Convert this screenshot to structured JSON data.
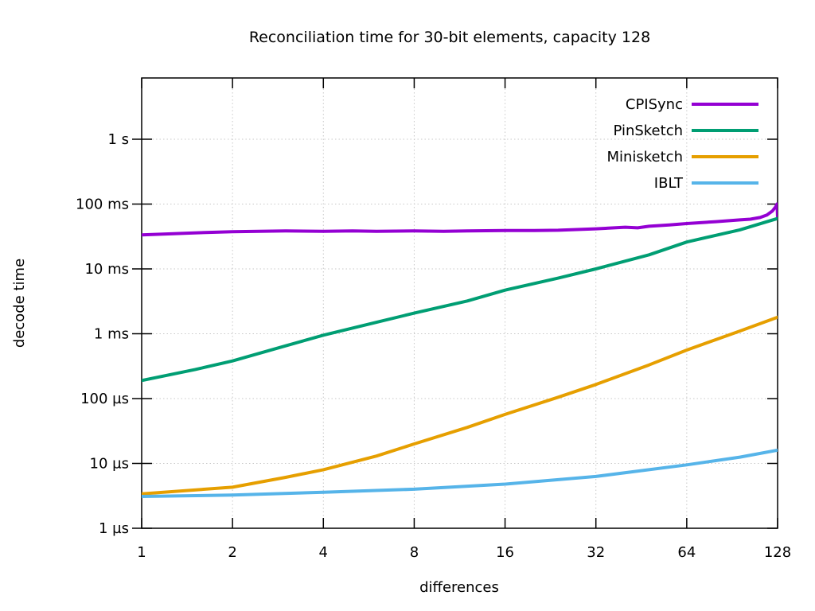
{
  "title": "Reconciliation time for 30-bit elements, capacity 128",
  "background_color": "#ffffff",
  "chart_data": {
    "type": "line",
    "title": "Reconciliation time for 30-bit elements, capacity 128",
    "xlabel": "differences",
    "ylabel": "decode time",
    "x_axis": {
      "scale": "log2",
      "range": [
        1,
        128
      ],
      "ticks": [
        1,
        2,
        4,
        8,
        16,
        32,
        64,
        128
      ],
      "tick_labels": [
        "1",
        "2",
        "4",
        "8",
        "16",
        "32",
        "64",
        "128"
      ]
    },
    "y_axis": {
      "scale": "log10",
      "unit": "microseconds",
      "range_us": [
        1,
        8800000
      ],
      "ticks_us": [
        1,
        10,
        100,
        1000,
        10000,
        100000,
        1000000
      ],
      "tick_labels": [
        "1 µs",
        "10 µs",
        "100 µs",
        "1 ms",
        "10 ms",
        "100 ms",
        "1 s"
      ]
    },
    "grid": true,
    "grid_color": "#c8c8c8",
    "axis_color": "#000000",
    "legend_position": "top-right-inside",
    "series": [
      {
        "name": "CPISync",
        "color": "#9400d3",
        "x": [
          1,
          1.5,
          2,
          3,
          4,
          5,
          6,
          8,
          10,
          12,
          16,
          20,
          24,
          32,
          40,
          44,
          48,
          56,
          64,
          80,
          96,
          104,
          112,
          118,
          123,
          126,
          127.5,
          128
        ],
        "y_us": [
          33500,
          36000,
          37500,
          38500,
          38000,
          38500,
          38000,
          38500,
          38000,
          38500,
          39000,
          39000,
          39500,
          41500,
          44000,
          43000,
          45500,
          47500,
          50000,
          53500,
          57000,
          58500,
          62000,
          68000,
          78000,
          90000,
          100000,
          62000
        ]
      },
      {
        "name": "PinSketch",
        "color": "#009e73",
        "x": [
          1,
          1.5,
          2,
          3,
          4,
          6,
          8,
          12,
          16,
          24,
          32,
          48,
          64,
          96,
          128
        ],
        "y_us": [
          190,
          280,
          380,
          650,
          950,
          1500,
          2080,
          3200,
          4700,
          7200,
          10000,
          16500,
          26000,
          40000,
          60000
        ]
      },
      {
        "name": "Minisketch",
        "color": "#e69f00",
        "x": [
          1,
          2,
          3,
          4,
          6,
          8,
          12,
          16,
          24,
          32,
          48,
          64,
          96,
          128
        ],
        "y_us": [
          3.4,
          4.3,
          6.1,
          8.0,
          13,
          20,
          36,
          57,
          105,
          165,
          330,
          560,
          1100,
          1800
        ]
      },
      {
        "name": "IBLT",
        "color": "#56b4e9",
        "x": [
          1,
          2,
          4,
          8,
          16,
          32,
          64,
          96,
          128
        ],
        "y_us": [
          3.1,
          3.25,
          3.6,
          4.0,
          4.8,
          6.3,
          9.5,
          12.5,
          16
        ]
      }
    ]
  }
}
